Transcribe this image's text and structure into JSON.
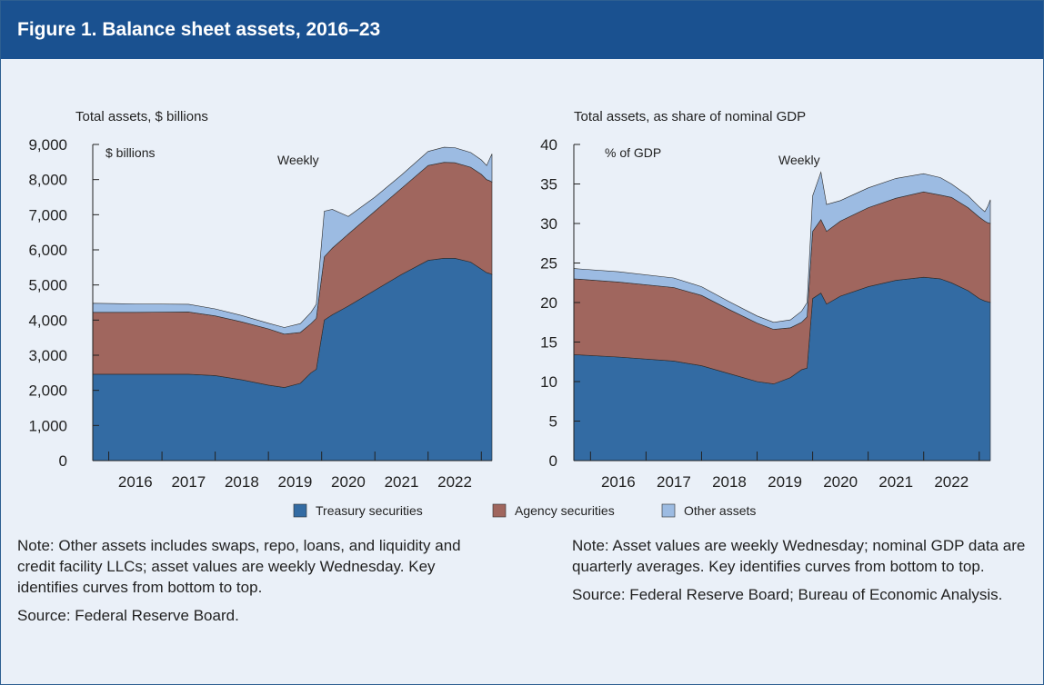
{
  "figure": {
    "title": "Figure 1. Balance sheet assets, 2016–23"
  },
  "colors": {
    "banner": "#1a5190",
    "background": "#eaf0f8",
    "treasury": "#336ba3",
    "agency": "#a0665e",
    "other": "#9cbbe2"
  },
  "legend": {
    "placement": "bottom-center",
    "items": [
      "Treasury securities",
      "Agency securities",
      "Other assets"
    ]
  },
  "chart_data": [
    {
      "type": "area",
      "stacked": true,
      "title": "Total assets, $ billions",
      "unit_label": "$ billions",
      "annotation": "Weekly",
      "x_ticks": [
        "2016",
        "2017",
        "2018",
        "2019",
        "2020",
        "2021",
        "2022"
      ],
      "xlim": [
        2015.7,
        2023.2
      ],
      "ylim": [
        0,
        9000
      ],
      "y_ticks": [
        {
          "value": 0,
          "label": "0"
        },
        {
          "value": 1000,
          "label": "1,000"
        },
        {
          "value": 2000,
          "label": "2,000"
        },
        {
          "value": 3000,
          "label": "3,000"
        },
        {
          "value": 4000,
          "label": "4,000"
        },
        {
          "value": 5000,
          "label": "5,000"
        },
        {
          "value": 6000,
          "label": "6,000"
        },
        {
          "value": 7000,
          "label": "7,000"
        },
        {
          "value": 8000,
          "label": "8,000"
        },
        {
          "value": 9000,
          "label": "9,000"
        }
      ],
      "x": [
        2015.7,
        2016.5,
        2017.5,
        2018.0,
        2018.5,
        2019.0,
        2019.3,
        2019.6,
        2019.8,
        2019.9,
        2020.05,
        2020.2,
        2020.5,
        2021.0,
        2021.5,
        2022.0,
        2022.3,
        2022.5,
        2022.8,
        2023.0,
        2023.1,
        2023.15,
        2023.2
      ],
      "series": [
        {
          "name": "Treasury securities",
          "values": [
            2460,
            2460,
            2460,
            2420,
            2300,
            2150,
            2080,
            2200,
            2500,
            2600,
            4000,
            4150,
            4400,
            4850,
            5300,
            5700,
            5760,
            5760,
            5650,
            5450,
            5350,
            5330,
            5300
          ]
        },
        {
          "name": "Agency securities",
          "values": [
            1760,
            1760,
            1770,
            1700,
            1650,
            1600,
            1520,
            1450,
            1400,
            1450,
            1800,
            1900,
            2050,
            2250,
            2450,
            2700,
            2730,
            2720,
            2700,
            2700,
            2650,
            2640,
            2630
          ]
        },
        {
          "name": "Other assets",
          "values": [
            260,
            240,
            220,
            200,
            180,
            160,
            190,
            250,
            320,
            400,
            1300,
            1100,
            500,
            400,
            380,
            400,
            430,
            430,
            420,
            410,
            400,
            600,
            800
          ]
        }
      ]
    },
    {
      "type": "area",
      "stacked": true,
      "title": "Total assets, as share of nominal GDP",
      "unit_label": "% of GDP",
      "annotation": "Weekly",
      "x_ticks": [
        "2016",
        "2017",
        "2018",
        "2019",
        "2020",
        "2021",
        "2022"
      ],
      "xlim": [
        2015.7,
        2023.2
      ],
      "ylim": [
        0,
        40
      ],
      "y_ticks": [
        {
          "value": 0,
          "label": "0"
        },
        {
          "value": 5,
          "label": "5"
        },
        {
          "value": 10,
          "label": "10"
        },
        {
          "value": 15,
          "label": "15"
        },
        {
          "value": 20,
          "label": "20"
        },
        {
          "value": 25,
          "label": "25"
        },
        {
          "value": 30,
          "label": "30"
        },
        {
          "value": 35,
          "label": "35"
        },
        {
          "value": 40,
          "label": "40"
        }
      ],
      "x": [
        2015.7,
        2016.5,
        2017.5,
        2018.0,
        2018.5,
        2019.0,
        2019.3,
        2019.6,
        2019.8,
        2019.9,
        2020.0,
        2020.15,
        2020.25,
        2020.5,
        2021.0,
        2021.5,
        2022.0,
        2022.3,
        2022.5,
        2022.8,
        2023.0,
        2023.1,
        2023.15,
        2023.2
      ],
      "series": [
        {
          "name": "Treasury securities",
          "values": [
            13.4,
            13.1,
            12.6,
            12.0,
            11.0,
            10.0,
            9.7,
            10.5,
            11.5,
            11.7,
            20.5,
            21.2,
            19.8,
            20.8,
            22.0,
            22.8,
            23.2,
            23.0,
            22.5,
            21.5,
            20.5,
            20.2,
            20.1,
            20.0
          ]
        },
        {
          "name": "Agency securities",
          "values": [
            9.6,
            9.5,
            9.3,
            8.9,
            8.1,
            7.4,
            6.9,
            6.3,
            6.0,
            6.5,
            8.5,
            9.3,
            9.2,
            9.5,
            10.0,
            10.4,
            10.8,
            10.6,
            10.8,
            10.5,
            10.3,
            10.1,
            10.0,
            10.0
          ]
        },
        {
          "name": "Other assets",
          "values": [
            1.3,
            1.3,
            1.2,
            1.1,
            1.0,
            0.9,
            0.9,
            1.0,
            1.4,
            1.8,
            4.5,
            6.0,
            3.4,
            2.6,
            2.5,
            2.5,
            2.3,
            2.2,
            1.7,
            1.5,
            1.3,
            1.2,
            2.0,
            3.0
          ]
        }
      ]
    }
  ],
  "notes": [
    {
      "note": "Note: Other assets includes swaps, repo, loans, and liquidity and credit facility LLCs; asset values are weekly Wednesday. Key identifies curves from bottom to top.",
      "source": "Source: Federal Reserve Board."
    },
    {
      "note": "Note: Asset values are weekly Wednesday; nominal GDP data are quarterly averages. Key identifies curves from bottom to top.",
      "source": "Source: Federal Reserve Board; Bureau of Economic Analysis."
    }
  ]
}
